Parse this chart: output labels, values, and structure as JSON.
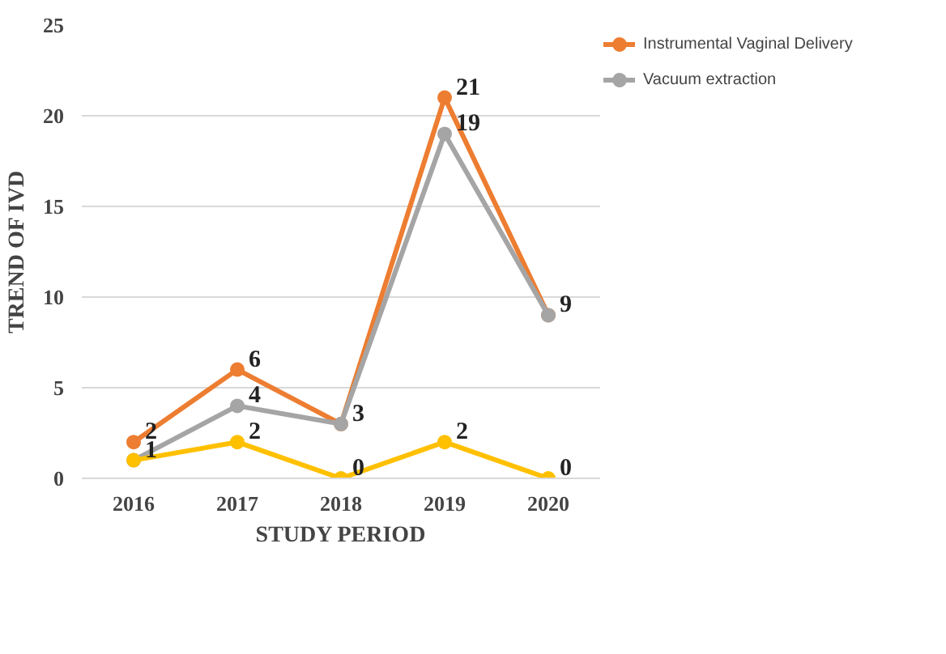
{
  "chart_data": {
    "type": "line",
    "xlabel": "STUDY PERIOD",
    "ylabel": "TREND OF IVD",
    "categories": [
      "2016",
      "2017",
      "2018",
      "2019",
      "2020"
    ],
    "series": [
      {
        "name": "Instrumental Vaginal Delivery",
        "color": "#ed7d31",
        "values": [
          2,
          6,
          3,
          21,
          9
        ],
        "value_labels": [
          "2",
          "6",
          null,
          "21",
          null
        ]
      },
      {
        "name": "Vacuum extraction",
        "color": "#a5a5a5",
        "values": [
          1,
          4,
          3,
          19,
          9
        ],
        "value_labels": [
          null,
          "4",
          "3",
          "19",
          "9"
        ]
      },
      {
        "color": "#ffc000",
        "values": [
          1,
          2,
          0,
          2,
          0
        ],
        "value_labels": [
          "1",
          "2",
          "0",
          "2",
          "0"
        ]
      }
    ],
    "ylim": [
      0,
      25
    ],
    "yticks": [
      0,
      5,
      10,
      15,
      20,
      25
    ],
    "grid": "y",
    "legend": "top right",
    "marker": "circle",
    "line_style": "solid"
  }
}
